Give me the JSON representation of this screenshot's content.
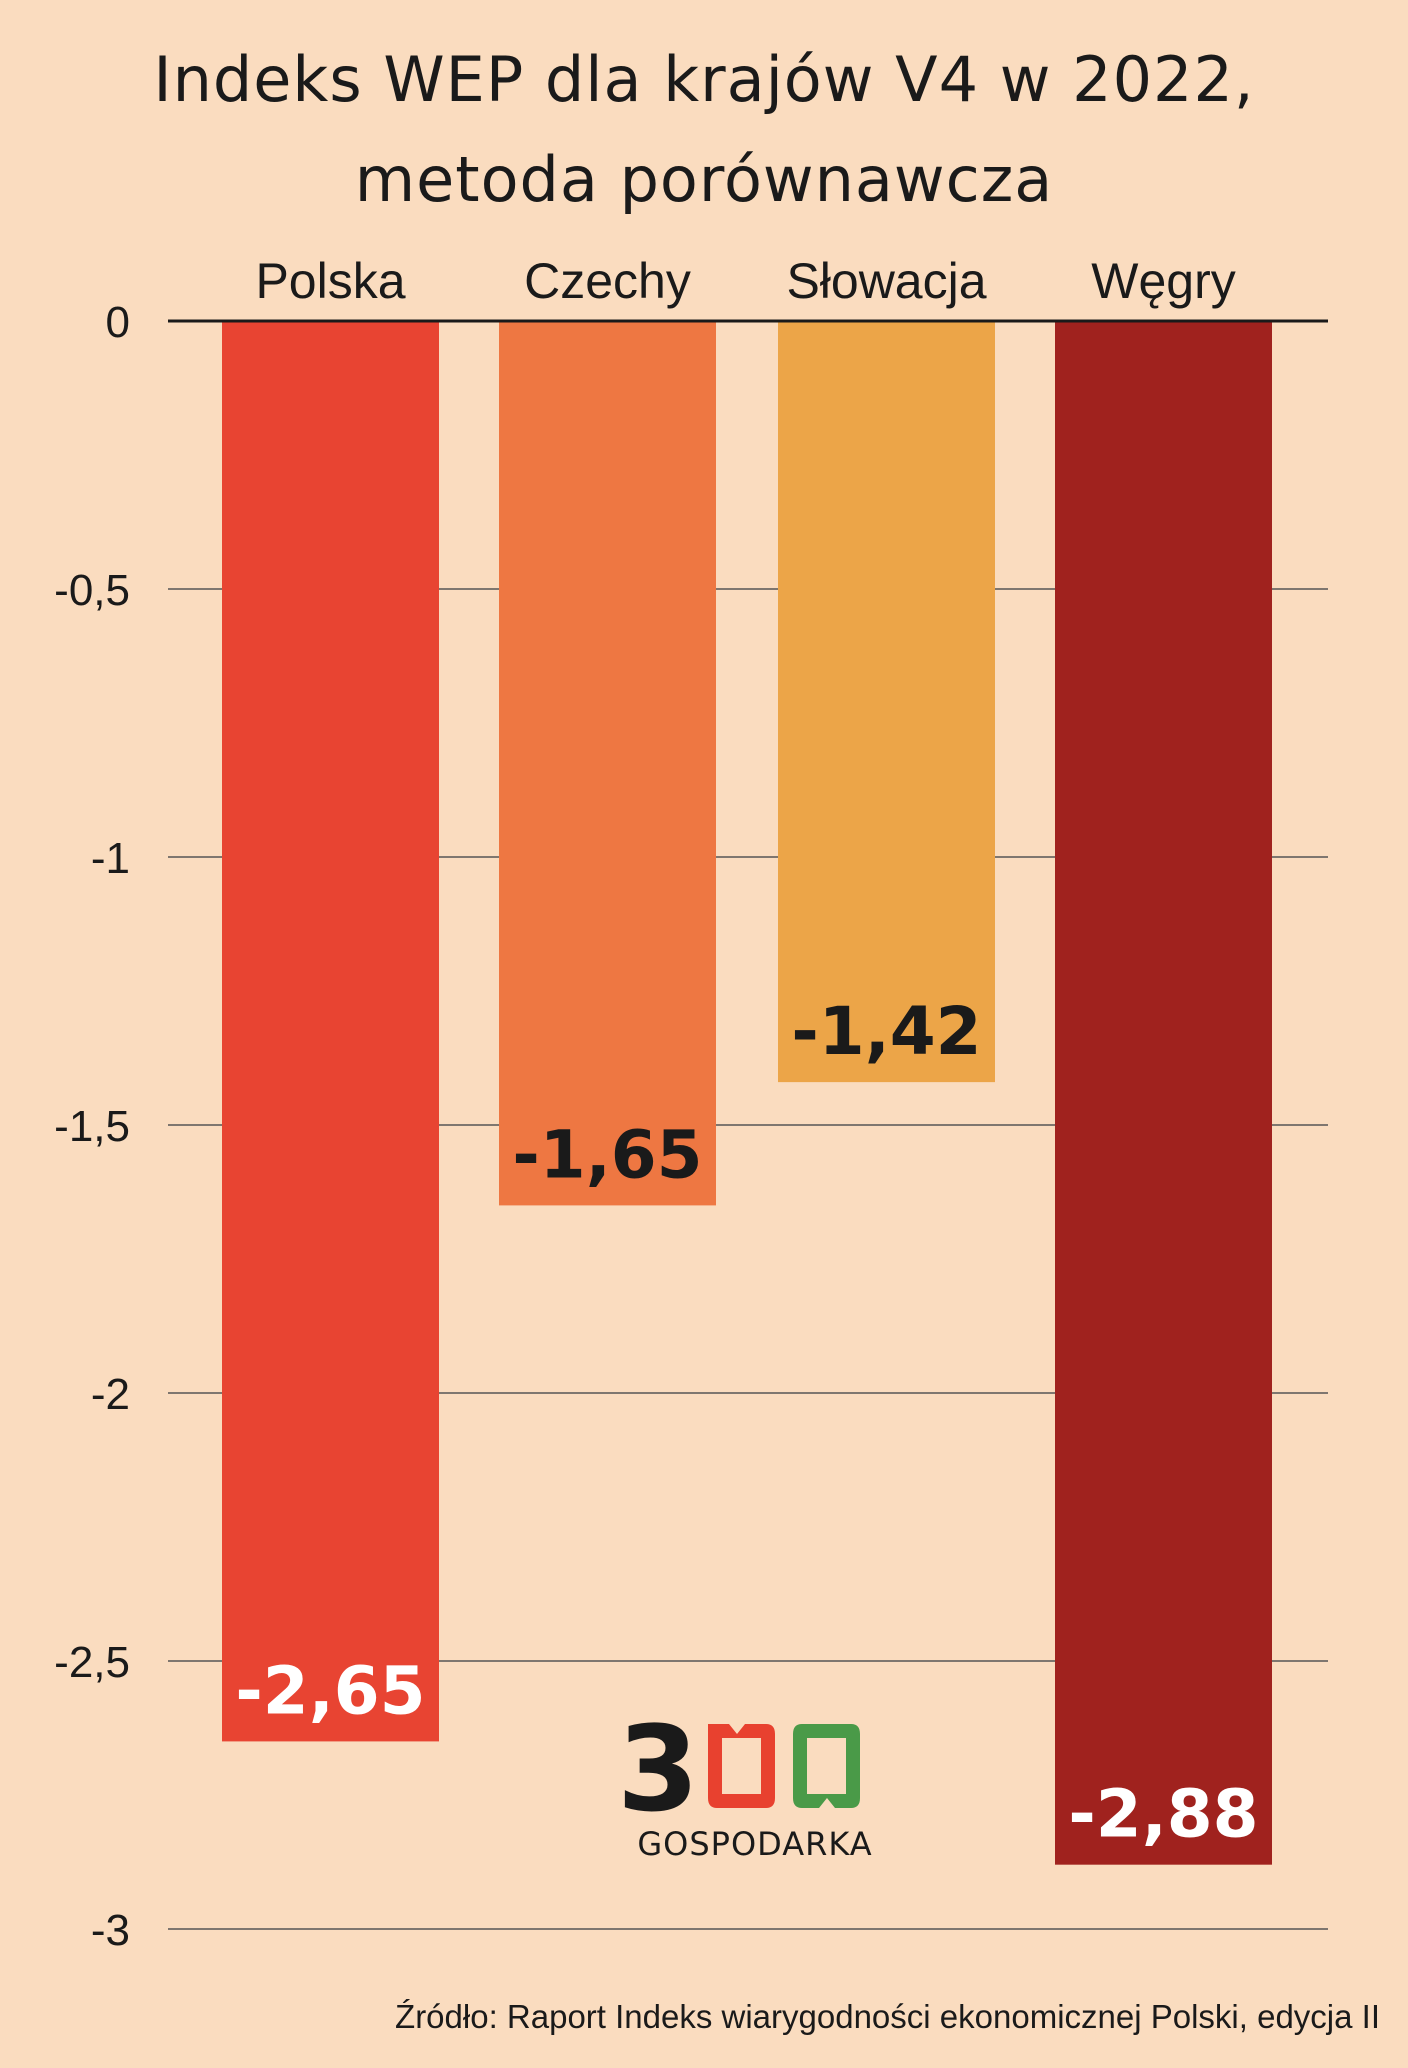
{
  "chart_data": {
    "type": "bar",
    "title_line1": "Indeks WEP dla krajów V4 w 2022,",
    "title_line2": "metoda porównawcza",
    "categories": [
      "Polska",
      "Czechy",
      "Słowacja",
      "Węgry"
    ],
    "values": [
      -2.65,
      -1.65,
      -1.42,
      -2.88
    ],
    "value_labels": [
      "-2,65",
      "-1,65",
      "-1,42",
      "-2,88"
    ],
    "colors": [
      "#e84432",
      "#ee7742",
      "#eca548",
      "#a0221e"
    ],
    "label_colors": [
      "#ffffff",
      "#1a1a1a",
      "#1a1a1a",
      "#ffffff"
    ],
    "yticks": [
      0,
      -0.5,
      -1,
      -1.5,
      -2,
      -2.5,
      -3
    ],
    "ytick_labels": [
      "0",
      "-0,5",
      "-1",
      "-1,5",
      "-2",
      "-2,5",
      "-3"
    ],
    "ylim": [
      -3,
      0
    ],
    "grid": true,
    "xlabel": "",
    "ylabel": ""
  },
  "logo": {
    "digit": "3",
    "word": "GOSPODARKA",
    "red": "#e8412f",
    "green": "#4a9a48"
  },
  "source": "Źródło: Raport Indeks wiarygodności ekonomicznej Polski, edycja II"
}
